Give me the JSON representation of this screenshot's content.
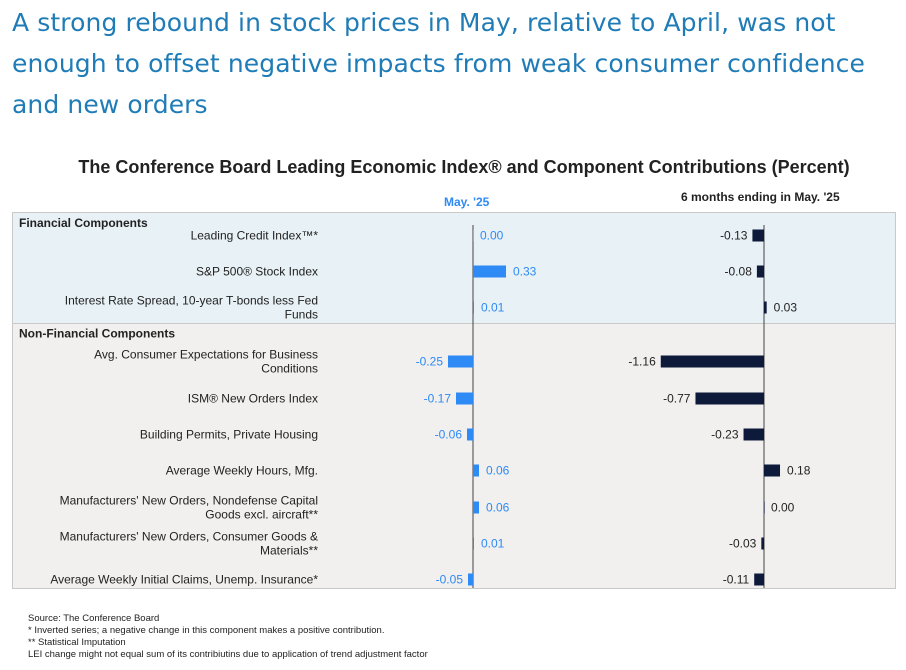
{
  "headline": "A strong rebound in stock prices in May, relative to April, was not enough to offset negative impacts from weak consumer confidence and new orders",
  "chart_data": {
    "type": "bar",
    "title": "The Conference Board Leading Economic Index® and Component Contributions (Percent)",
    "columns": [
      "May. '25",
      "6 months ending in May. '25"
    ],
    "sections": [
      {
        "name": "Financial Components",
        "rows": [
          {
            "label": "Leading Credit Index™*",
            "may": 0.0,
            "six_months": -0.13
          },
          {
            "label": "S&P 500® Stock Index",
            "may": 0.33,
            "six_months": -0.08
          },
          {
            "label": "Interest Rate Spread, 10-year T-bonds less Fed Funds",
            "may": 0.01,
            "six_months": 0.03
          }
        ]
      },
      {
        "name": "Non-Financial Components",
        "rows": [
          {
            "label": "Avg. Consumer Expectations for Business Conditions",
            "may": -0.25,
            "six_months": -1.16
          },
          {
            "label": "ISM® New Orders Index",
            "may": -0.17,
            "six_months": -0.77
          },
          {
            "label": "Building Permits, Private Housing",
            "may": -0.06,
            "six_months": -0.23
          },
          {
            "label": "Average Weekly Hours, Mfg.",
            "may": 0.06,
            "six_months": 0.18
          },
          {
            "label": "Manufacturers' New Orders, Nondefense Capital Goods excl. aircraft**",
            "may": 0.06,
            "six_months": 0.0
          },
          {
            "label": "Manufacturers' New Orders, Consumer Goods & Materials**",
            "may": 0.01,
            "six_months": -0.03
          },
          {
            "label": "Average Weekly Initial Claims, Unemp. Insurance*",
            "may": -0.05,
            "six_months": -0.11
          }
        ]
      }
    ],
    "colors": {
      "may": "#2e8af5",
      "six_months": "#0d1a3a",
      "financial_bg": "#e8f1f6",
      "nonfinancial_bg": "#f1f0ee"
    }
  },
  "footnotes": [
    "Source: The Conference Board",
    "*  Inverted series; a negative change in this component makes a positive contribution.",
    "**  Statistical Imputation",
    "LEI change might not equal sum of its contribiutins due to application of trend adjustment factor"
  ]
}
